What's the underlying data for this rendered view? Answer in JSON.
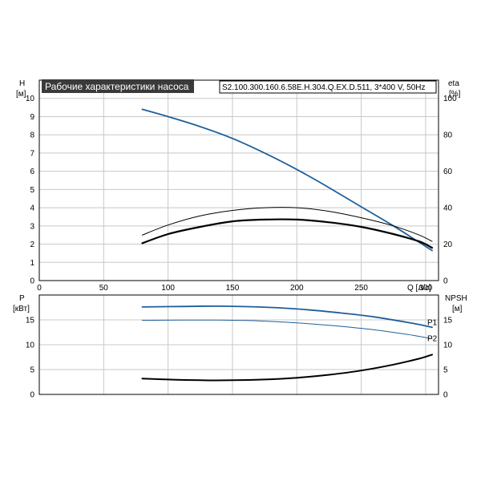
{
  "title": "Рабочие характеристики насоса",
  "model": "S2.100.300.160.6.58E.H.304.Q.EX.D.511, 3*400 V, 50Hz",
  "colors": {
    "head": "#1f5f9a",
    "eff": "#000000",
    "power": "#1f5f9a",
    "npsh": "#000000"
  },
  "chart_data": [
    {
      "type": "line",
      "xlabel": "Q [л/с]",
      "ylabel": "H",
      "ylabel_unit": "[м]",
      "y2label": "eta",
      "y2label_unit": "[%]",
      "xlim": [
        0,
        310
      ],
      "ylim": [
        0,
        11
      ],
      "y2lim": [
        0,
        110
      ],
      "x_ticks": [
        0,
        50,
        100,
        150,
        200,
        250,
        300
      ],
      "y_ticks": [
        0,
        1,
        2,
        3,
        4,
        5,
        6,
        7,
        8,
        9,
        10
      ],
      "y2_ticks": [
        0,
        20,
        40,
        60,
        80,
        100
      ],
      "grid": true,
      "series": [
        {
          "axis": "left",
          "color": "#1f5f9a",
          "width": 1.8,
          "x": [
            80,
            100,
            125,
            150,
            175,
            200,
            225,
            250,
            275,
            295,
            305
          ],
          "y": [
            9.4,
            9.0,
            8.45,
            7.8,
            7.0,
            6.1,
            5.1,
            4.05,
            3.0,
            2.1,
            1.65
          ]
        },
        {
          "axis": "right",
          "color": "#000000",
          "width": 1,
          "x": [
            80,
            100,
            125,
            150,
            175,
            200,
            225,
            250,
            275,
            295,
            305
          ],
          "y": [
            25,
            30.5,
            35.5,
            38.5,
            40,
            40,
            38,
            34.5,
            30,
            25,
            21.5
          ]
        },
        {
          "axis": "right",
          "color": "#000000",
          "width": 2.2,
          "x": [
            80,
            100,
            125,
            150,
            175,
            200,
            225,
            250,
            275,
            295,
            305
          ],
          "y": [
            20.5,
            25.5,
            29.5,
            32.5,
            33.5,
            33.5,
            32,
            29.5,
            25.5,
            21.5,
            18
          ]
        }
      ]
    },
    {
      "type": "line",
      "ylabel": "P",
      "ylabel_unit": "[кВт]",
      "y2label": "NPSH",
      "y2label_unit": "[м]",
      "xlim": [
        0,
        310
      ],
      "ylim": [
        0,
        20
      ],
      "y2lim": [
        0,
        20
      ],
      "y_ticks": [
        0,
        5,
        10,
        15
      ],
      "y2_ticks": [
        0,
        5,
        10,
        15
      ],
      "grid": true,
      "series": [
        {
          "name": "P1",
          "axis": "left",
          "color": "#1f5f9a",
          "width": 1.8,
          "x": [
            80,
            110,
            140,
            170,
            200,
            230,
            260,
            290,
            305
          ],
          "y": [
            17.6,
            17.7,
            17.75,
            17.6,
            17.2,
            16.5,
            15.6,
            14.3,
            13.5
          ]
        },
        {
          "name": "P2",
          "axis": "left",
          "color": "#1f5f9a",
          "width": 1,
          "x": [
            80,
            110,
            140,
            170,
            200,
            230,
            260,
            290,
            305
          ],
          "y": [
            14.9,
            14.95,
            14.95,
            14.8,
            14.4,
            13.8,
            13.0,
            11.9,
            11.2
          ]
        },
        {
          "axis": "right",
          "color": "#000000",
          "width": 2,
          "x": [
            80,
            100,
            125,
            150,
            175,
            200,
            225,
            250,
            275,
            295,
            305
          ],
          "y": [
            3.2,
            3.0,
            2.85,
            2.85,
            3.0,
            3.35,
            3.95,
            4.8,
            6.0,
            7.2,
            8.0
          ]
        }
      ]
    }
  ]
}
